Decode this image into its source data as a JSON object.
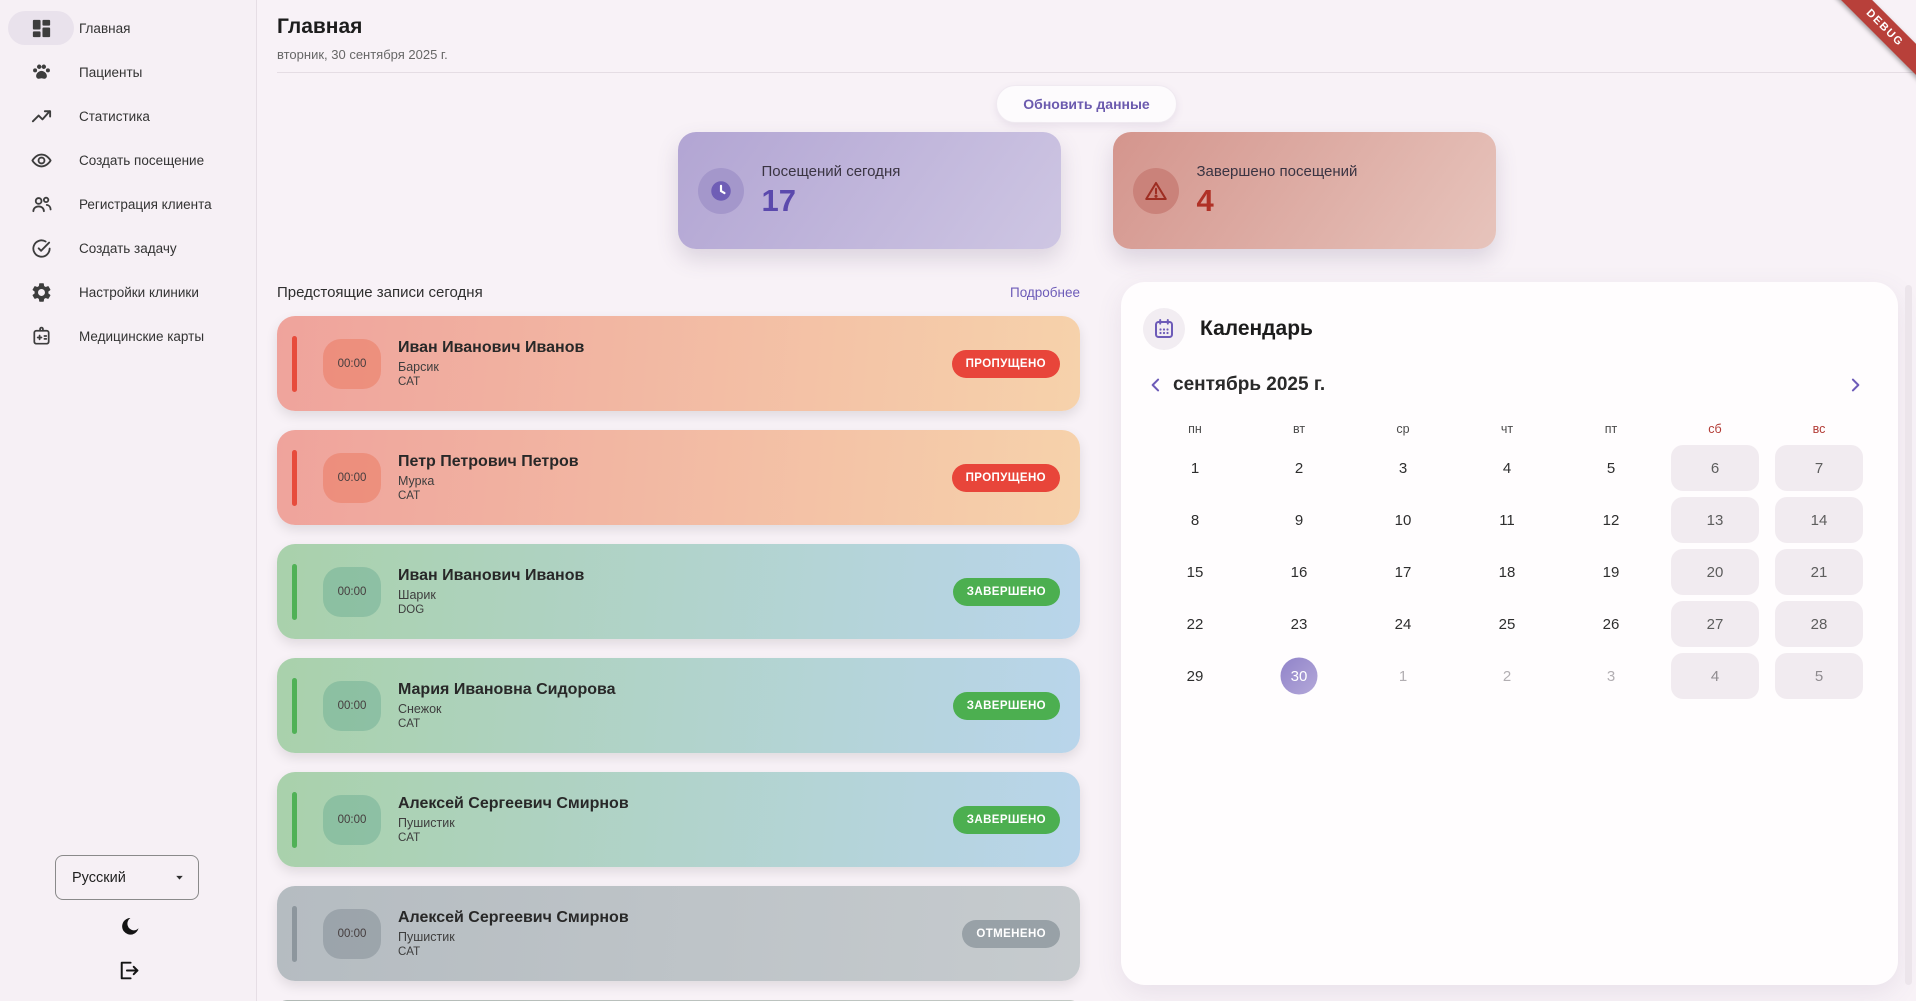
{
  "app": {
    "debug_ribbon": "DEBUG"
  },
  "colors": {
    "accent_purple": "#6d5bb8",
    "status_missed": "#e8453a",
    "status_completed": "#4caf50",
    "status_cancelled": "#98a1a7",
    "weekend_red": "#b23b35"
  },
  "sidebar": {
    "items": [
      {
        "label": "Главная",
        "icon": "dashboard-icon",
        "active": true
      },
      {
        "label": "Пациенты",
        "icon": "paw-icon",
        "active": false
      },
      {
        "label": "Статистика",
        "icon": "trend-icon",
        "active": false
      },
      {
        "label": "Создать посещение",
        "icon": "eye-icon",
        "active": false
      },
      {
        "label": "Регистрация клиента",
        "icon": "people-icon",
        "active": false
      },
      {
        "label": "Создать задачу",
        "icon": "check-circle-icon",
        "active": false
      },
      {
        "label": "Настройки клиники",
        "icon": "gear-icon",
        "active": false
      },
      {
        "label": "Медицинские карты",
        "icon": "medical-card-icon",
        "active": false
      }
    ],
    "language_select": {
      "value": "Русский"
    }
  },
  "header": {
    "title": "Главная",
    "date": "вторник, 30 сентября 2025 г."
  },
  "actions": {
    "refresh_label": "Обновить данные"
  },
  "stats": [
    {
      "label": "Посещений сегодня",
      "value": "17",
      "icon": "clock-icon"
    },
    {
      "label": "Завершено посещений",
      "value": "4",
      "icon": "warning-icon"
    }
  ],
  "appointments": {
    "section_title": "Предстоящие записи сегодня",
    "more_link": "Подробнее",
    "items": [
      {
        "time": "00:00",
        "client": "Иван Иванович Иванов",
        "pet": "Барсик",
        "species": "CAT",
        "status": "ПРОПУЩЕНО",
        "theme": "missed"
      },
      {
        "time": "00:00",
        "client": "Петр Петрович Петров",
        "pet": "Мурка",
        "species": "CAT",
        "status": "ПРОПУЩЕНО",
        "theme": "missed"
      },
      {
        "time": "00:00",
        "client": "Иван Иванович Иванов",
        "pet": "Шарик",
        "species": "DOG",
        "status": "ЗАВЕРШЕНО",
        "theme": "completed"
      },
      {
        "time": "00:00",
        "client": "Мария Ивановна Сидорова",
        "pet": "Снежок",
        "species": "CAT",
        "status": "ЗАВЕРШЕНО",
        "theme": "completed"
      },
      {
        "time": "00:00",
        "client": "Алексей Сергеевич Смирнов",
        "pet": "Пушистик",
        "species": "CAT",
        "status": "ЗАВЕРШЕНО",
        "theme": "completed"
      },
      {
        "time": "00:00",
        "client": "Алексей Сергеевич Смирнов",
        "pet": "Пушистик",
        "species": "CAT",
        "status": "ОТМЕНЕНО",
        "theme": "cancelled"
      }
    ]
  },
  "calendar": {
    "panel_title": "Календарь",
    "month_label": "сентябрь 2025 г.",
    "weekdays": [
      "пн",
      "вт",
      "ср",
      "чт",
      "пт",
      "сб",
      "вс"
    ],
    "selected_day": 30,
    "weeks": [
      [
        {
          "day": 1
        },
        {
          "day": 2
        },
        {
          "day": 3
        },
        {
          "day": 4
        },
        {
          "day": 5
        },
        {
          "day": 6,
          "weekend": true
        },
        {
          "day": 7,
          "weekend": true
        }
      ],
      [
        {
          "day": 8
        },
        {
          "day": 9
        },
        {
          "day": 10
        },
        {
          "day": 11
        },
        {
          "day": 12
        },
        {
          "day": 13,
          "weekend": true
        },
        {
          "day": 14,
          "weekend": true
        }
      ],
      [
        {
          "day": 15
        },
        {
          "day": 16
        },
        {
          "day": 17
        },
        {
          "day": 18
        },
        {
          "day": 19
        },
        {
          "day": 20,
          "weekend": true
        },
        {
          "day": 21,
          "weekend": true
        }
      ],
      [
        {
          "day": 22
        },
        {
          "day": 23
        },
        {
          "day": 24
        },
        {
          "day": 25
        },
        {
          "day": 26
        },
        {
          "day": 27,
          "weekend": true
        },
        {
          "day": 28,
          "weekend": true
        }
      ],
      [
        {
          "day": 29
        },
        {
          "day": 30,
          "selected": true
        },
        {
          "day": 1,
          "muted": true
        },
        {
          "day": 2,
          "muted": true
        },
        {
          "day": 3,
          "muted": true
        },
        {
          "day": 4,
          "weekend": true,
          "muted": true
        },
        {
          "day": 5,
          "weekend": true,
          "muted": true
        }
      ]
    ]
  }
}
